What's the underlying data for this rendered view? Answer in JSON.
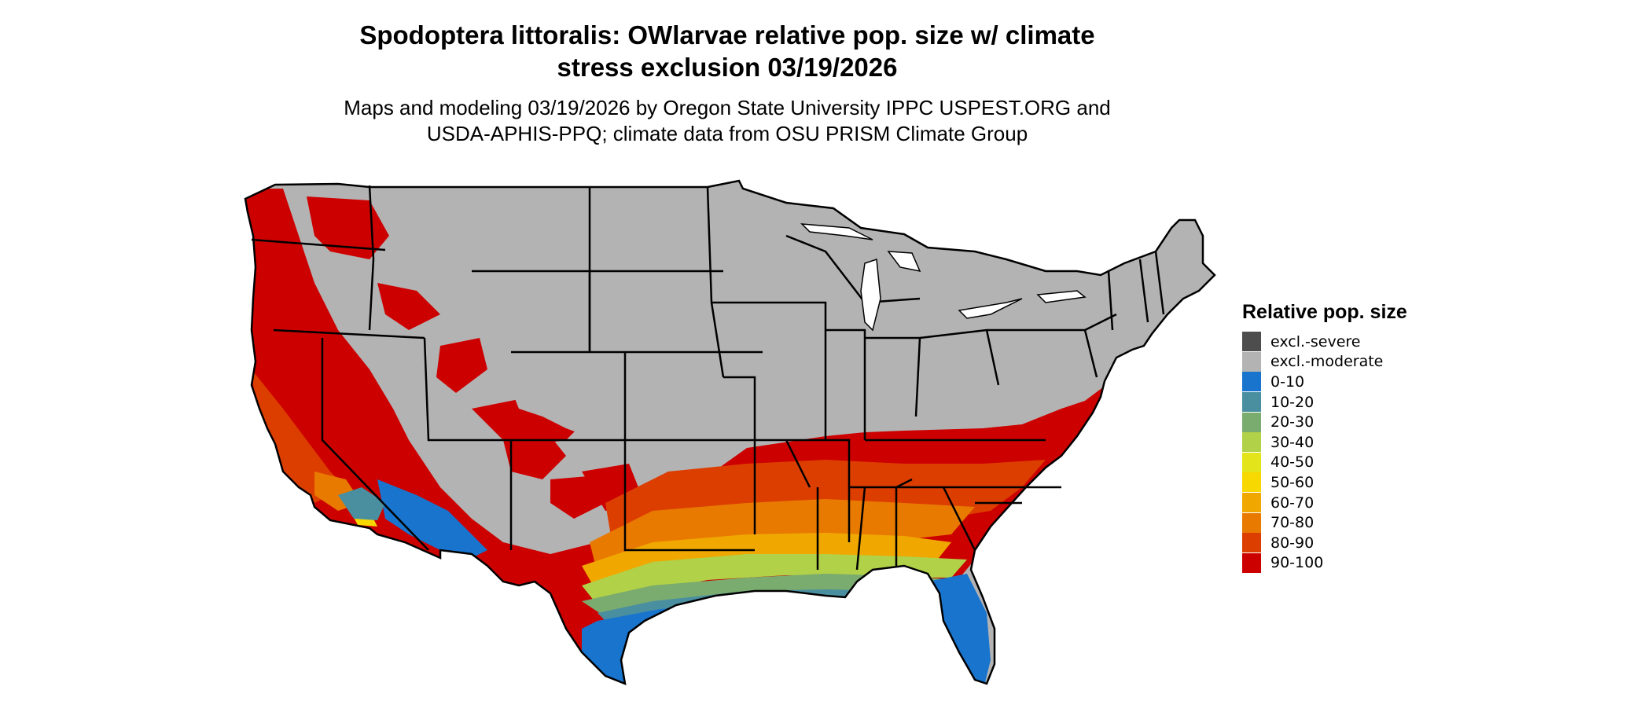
{
  "title_line1": "Spodoptera littoralis: OWlarvae relative pop. size w/ climate",
  "title_line2": "stress exclusion 03/19/2026",
  "subtitle_line1": "Maps and modeling 03/19/2026 by Oregon State University IPPC USPEST.ORG and",
  "subtitle_line2": "USDA-APHIS-PPQ; climate data from OSU PRISM Climate Group",
  "legend": {
    "title": "Relative pop. size",
    "items": [
      {
        "label": "excl.-severe",
        "color": "#4d4d4d"
      },
      {
        "label": "excl.-moderate",
        "color": "#b3b3b3"
      },
      {
        "label": "0-10",
        "color": "#1874cd"
      },
      {
        "label": "10-20",
        "color": "#4a8fa0"
      },
      {
        "label": "20-30",
        "color": "#7aab6f"
      },
      {
        "label": "30-40",
        "color": "#b1d148"
      },
      {
        "label": "40-50",
        "color": "#e4e41a"
      },
      {
        "label": "50-60",
        "color": "#f7d800"
      },
      {
        "label": "60-70",
        "color": "#f0a800"
      },
      {
        "label": "70-80",
        "color": "#e87a00"
      },
      {
        "label": "80-90",
        "color": "#dc3e00"
      },
      {
        "label": "90-100",
        "color": "#cd0000"
      }
    ]
  }
}
